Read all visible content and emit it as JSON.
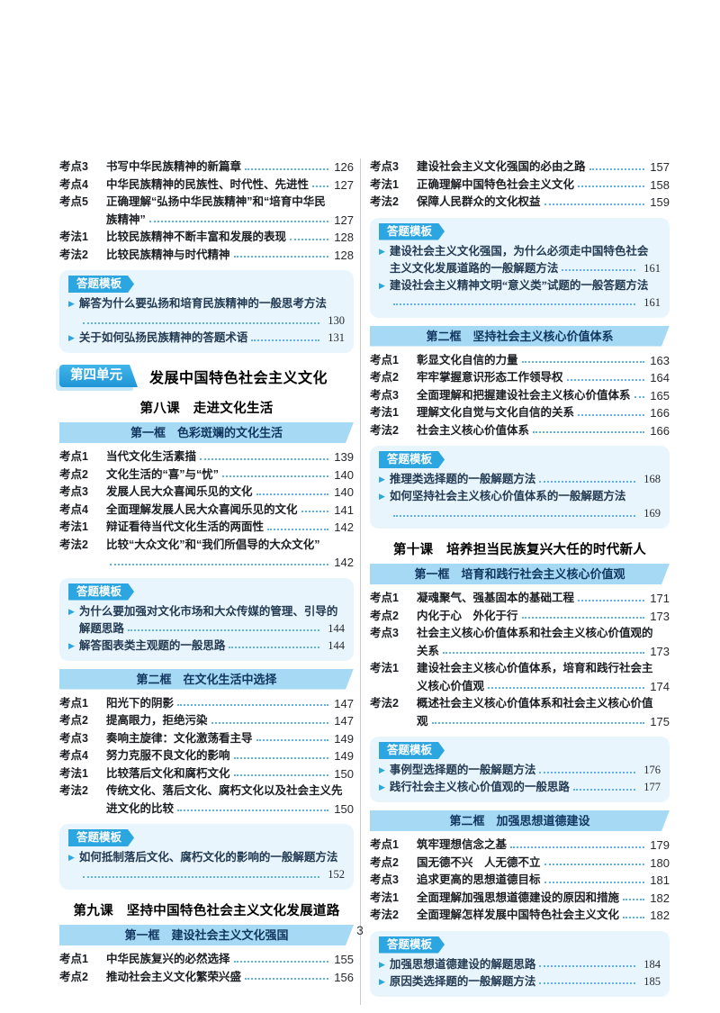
{
  "page": {
    "footer_page_number": "3"
  },
  "icons": {
    "bullet": "▶"
  },
  "colors": {
    "accent_blue": "#2ba6e0",
    "banner_bg": "#a6daf4",
    "banner_text": "#10365f",
    "template_box_bg": "#e9f5fc",
    "dot_leader": "#5fb3e2",
    "unit_badge_gradient_top": "#41b5e9",
    "unit_badge_gradient_bottom": "#1f95d6",
    "unit_badge_shadow": "#c3e6f8"
  },
  "columns": [
    {
      "blocks": [
        {
          "type": "entries",
          "items": [
            {
              "label": "考点3",
              "line1": "书写中华民族精神的新篇章",
              "page": "126"
            },
            {
              "label": "考点4",
              "line1": "中华民族精神的民族性、时代性、先进性",
              "page": "127"
            },
            {
              "label": "考点5",
              "line1": "正确理解“弘扬中华民族精神”和“培育中华民",
              "line2": "族精神”",
              "page": "127"
            },
            {
              "label": "考法1",
              "line1": "比较民族精神不断丰富和发展的表现",
              "page": "128"
            },
            {
              "label": "考法2",
              "line1": "比较民族精神与时代精神",
              "page": "128"
            }
          ]
        },
        {
          "type": "template",
          "badge": "答题模板",
          "items": [
            {
              "line1": "解答为什么要弘扬和培育民族精神的一般思考方法",
              "line2": "",
              "page": "130"
            },
            {
              "line1": "关于如何弘扬民族精神的答题术语",
              "page": "131"
            }
          ]
        },
        {
          "type": "unit",
          "badge": "第四单元",
          "title": "发展中国特色社会主义文化"
        },
        {
          "type": "course",
          "title": "第八课　走进文化生活"
        },
        {
          "type": "frame",
          "title": "第一框　色彩斑斓的文化生活"
        },
        {
          "type": "entries",
          "items": [
            {
              "label": "考点1",
              "line1": "当代文化生活素描",
              "page": "139"
            },
            {
              "label": "考点2",
              "line1": "文化生活的“喜”与“忧”",
              "page": "140"
            },
            {
              "label": "考点3",
              "line1": "发展人民大众喜闻乐见的文化",
              "page": "140"
            },
            {
              "label": "考点4",
              "line1": "全面理解发展人民大众喜闻乐见的文化",
              "page": "141"
            },
            {
              "label": "考法1",
              "line1": "辩证看待当代文化生活的两面性",
              "page": "142"
            },
            {
              "label": "考法2",
              "line1": "比较“大众文化”和“我们所倡导的大众文化”",
              "line2": "",
              "page": "142"
            }
          ]
        },
        {
          "type": "template",
          "badge": "答题模板",
          "items": [
            {
              "line1": "为什么要加强对文化市场和大众传媒的管理、引导的",
              "line2": "解题思路",
              "page": "144"
            },
            {
              "line1": "解答图表类主观题的一般思路",
              "page": "144"
            }
          ]
        },
        {
          "type": "frame",
          "title": "第二框　在文化生活中选择"
        },
        {
          "type": "entries",
          "items": [
            {
              "label": "考点1",
              "line1": "阳光下的阴影",
              "page": "147"
            },
            {
              "label": "考点2",
              "line1": "提高眼力，拒绝污染",
              "page": "147"
            },
            {
              "label": "考点3",
              "line1": "奏响主旋律：文化激荡看主导",
              "page": "149"
            },
            {
              "label": "考点4",
              "line1": "努力克服不良文化的影响",
              "page": "149"
            },
            {
              "label": "考法1",
              "line1": "比较落后文化和腐朽文化",
              "page": "150"
            },
            {
              "label": "考法2",
              "line1": "传统文化、落后文化、腐朽文化以及社会主义先",
              "line2": "进文化的比较",
              "page": "150"
            }
          ]
        },
        {
          "type": "template",
          "badge": "答题模板",
          "items": [
            {
              "line1": "如何抵制落后文化、腐朽文化的影响的一般解题方法",
              "line2": "",
              "page": "152"
            }
          ]
        },
        {
          "type": "course",
          "title": "第九课　坚持中国特色社会主义文化发展道路"
        },
        {
          "type": "frame",
          "title": "第一框　建设社会主义文化强国"
        },
        {
          "type": "entries",
          "items": [
            {
              "label": "考点1",
              "line1": "中华民族复兴的必然选择",
              "page": "155"
            },
            {
              "label": "考点2",
              "line1": "推动社会主义文化繁荣兴盛",
              "page": "156"
            }
          ]
        }
      ]
    },
    {
      "blocks": [
        {
          "type": "entries",
          "items": [
            {
              "label": "考点3",
              "line1": "建设社会主义文化强国的必由之路",
              "page": "157"
            },
            {
              "label": "考法1",
              "line1": "正确理解中国特色社会主义文化",
              "page": "158"
            },
            {
              "label": "考法2",
              "line1": "保障人民群众的文化权益",
              "page": "159"
            }
          ]
        },
        {
          "type": "template",
          "badge": "答题模板",
          "items": [
            {
              "line1": "建设社会主义文化强国，为什么必须走中国特色社会",
              "line2": "主义文化发展道路的一般解题方法",
              "page": "161"
            },
            {
              "line1": "建设社会主义精神文明“意义类”试题的一般答题方法",
              "line2": "",
              "page": "161"
            }
          ]
        },
        {
          "type": "frame",
          "title": "第二框　坚持社会主义核心价值体系"
        },
        {
          "type": "entries",
          "items": [
            {
              "label": "考点1",
              "line1": "彰显文化自信的力量",
              "page": "163"
            },
            {
              "label": "考点2",
              "line1": "牢牢掌握意识形态工作领导权",
              "page": "164"
            },
            {
              "label": "考点3",
              "line1": "全面理解和把握建设社会主义核心价值体系",
              "page": "165"
            },
            {
              "label": "考法1",
              "line1": "理解文化自觉与文化自信的关系",
              "page": "166"
            },
            {
              "label": "考法2",
              "line1": "社会主义核心价值体系",
              "page": "166"
            }
          ]
        },
        {
          "type": "template",
          "badge": "答题模板",
          "items": [
            {
              "line1": "推理类选择题的一般解题方法",
              "page": "168"
            },
            {
              "line1": "如何坚持社会主义核心价值体系的一般解题方法",
              "line2": "",
              "page": "169"
            }
          ]
        },
        {
          "type": "course",
          "title": "第十课　培养担当民族复兴大任的时代新人"
        },
        {
          "type": "frame",
          "title": "第一框　培育和践行社会主义核心价值观"
        },
        {
          "type": "entries",
          "items": [
            {
              "label": "考点1",
              "line1": "凝魂聚气、强基固本的基础工程",
              "page": "171"
            },
            {
              "label": "考点2",
              "line1": "内化于心　外化于行",
              "page": "173"
            },
            {
              "label": "考点3",
              "line1": "社会主义核心价值体系和社会主义核心价值观的",
              "line2": "关系",
              "page": "173"
            },
            {
              "label": "考法1",
              "line1": "建设社会主义核心价值体系，培育和践行社会主",
              "line2": "义核心价值观",
              "page": "174"
            },
            {
              "label": "考法2",
              "line1": "概述社会主义核心价值体系和社会主义核心价值",
              "line2": "观",
              "page": "175"
            }
          ]
        },
        {
          "type": "template",
          "badge": "答题模板",
          "items": [
            {
              "line1": "事例型选择题的一般解题方法",
              "page": "176"
            },
            {
              "line1": "践行社会主义核心价值观的一般思路",
              "page": "177"
            }
          ]
        },
        {
          "type": "frame",
          "title": "第二框　加强思想道德建设"
        },
        {
          "type": "entries",
          "items": [
            {
              "label": "考点1",
              "line1": "筑牢理想信念之基",
              "page": "179"
            },
            {
              "label": "考点2",
              "line1": "国无德不兴　人无德不立",
              "page": "180"
            },
            {
              "label": "考点3",
              "line1": "追求更高的思想道德目标",
              "page": "181"
            },
            {
              "label": "考法1",
              "line1": "全面理解加强思想道德建设的原因和措施",
              "page": "182"
            },
            {
              "label": "考法2",
              "line1": "全面理解怎样发展中国特色社会主义文化",
              "page": "182"
            }
          ]
        },
        {
          "type": "template",
          "badge": "答题模板",
          "items": [
            {
              "line1": "加强思想道德建设的解题思路",
              "page": "184"
            },
            {
              "line1": "原因类选择题的一般解题方法",
              "page": "185"
            }
          ]
        }
      ]
    }
  ]
}
